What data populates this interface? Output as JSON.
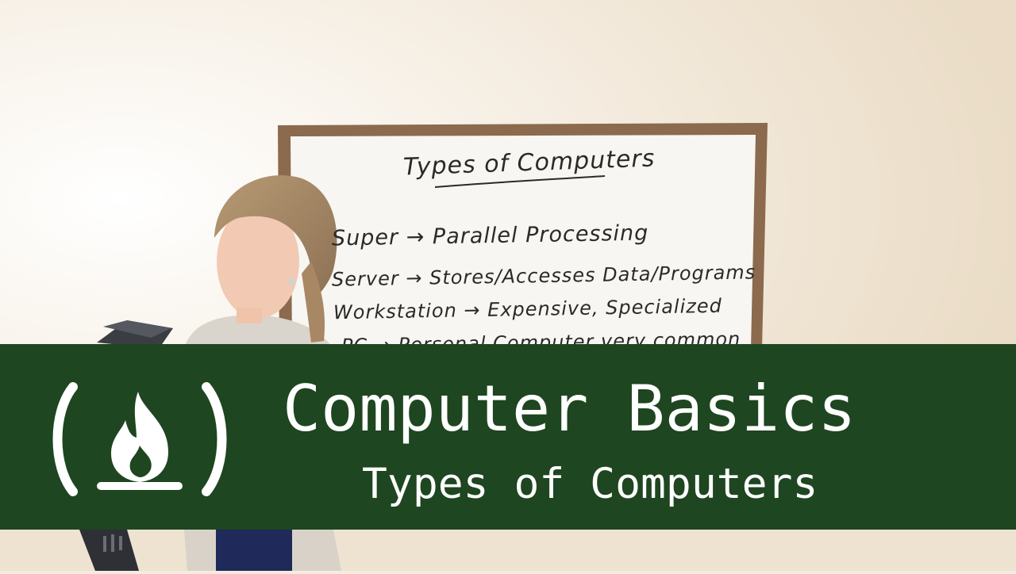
{
  "whiteboard": {
    "heading": "Types of Computers",
    "lines": [
      "Super → Parallel Processing",
      "Server → Stores/Accesses Data/Programs",
      "Workstation → Expensive, Specialized",
      "PC → Personal Computer very common"
    ]
  },
  "banner": {
    "title": "Computer Basics",
    "subtitle": "Types of Computers",
    "logo": "freecodecamp-flame-icon"
  },
  "colors": {
    "banner_bg": "#1e4620",
    "banner_text": "#ffffff",
    "wall": "#f3ecdf",
    "board_frame": "#8b6a4e",
    "board_surface": "#f7f6f2"
  }
}
